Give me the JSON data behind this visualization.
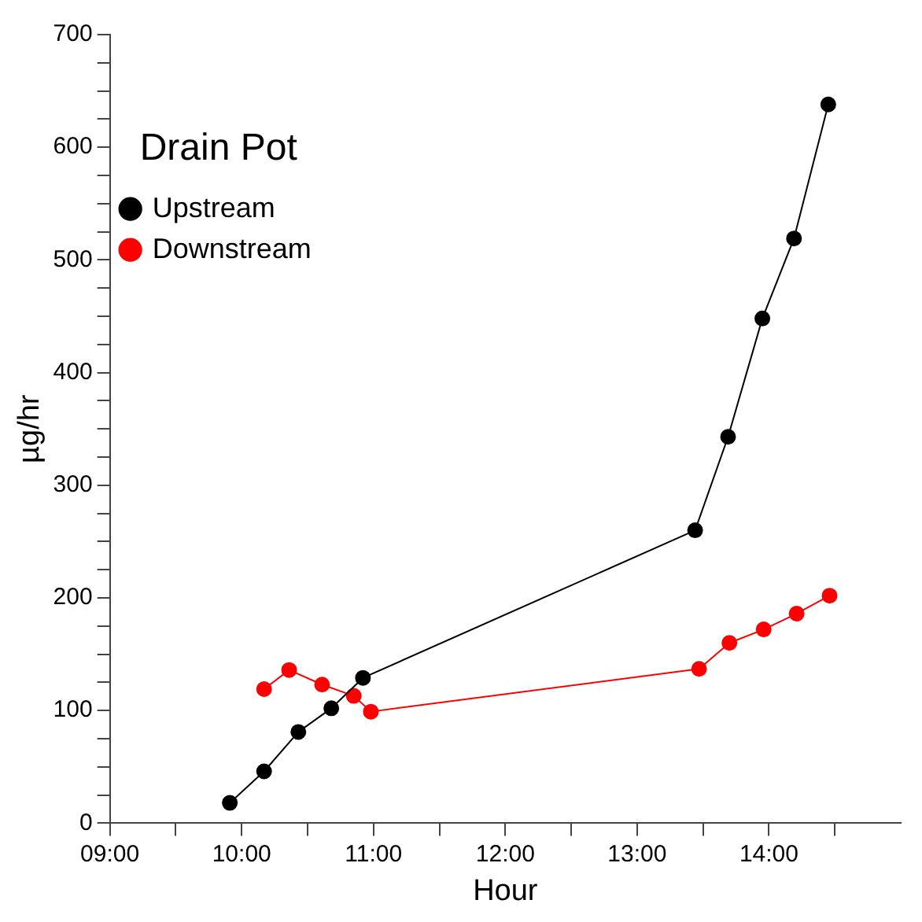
{
  "chart_data": {
    "type": "line",
    "xlabel": "Hour",
    "ylabel": "µg/hr",
    "legend_title": "Drain Pot",
    "legend": "top left",
    "marker": "circle",
    "grid": false,
    "xlim": [
      9,
      15
    ],
    "xticks": [
      {
        "value": 9,
        "label": "09:00"
      },
      {
        "value": 9.5,
        "label": null
      },
      {
        "value": 10,
        "label": "10:00"
      },
      {
        "value": 10.5,
        "label": null
      },
      {
        "value": 11,
        "label": "11:00"
      },
      {
        "value": 11.5,
        "label": null
      },
      {
        "value": 12,
        "label": "12:00"
      },
      {
        "value": 12.5,
        "label": null
      },
      {
        "value": 13,
        "label": "13:00"
      },
      {
        "value": 13.5,
        "label": null
      },
      {
        "value": 14,
        "label": "14:00"
      },
      {
        "value": 14.5,
        "label": null
      }
    ],
    "ylim": [
      0,
      700
    ],
    "yticks": [
      0,
      {
        "value": 25,
        "label": null
      },
      {
        "value": 50,
        "label": null
      },
      {
        "value": 75,
        "label": null
      },
      100,
      {
        "value": 125,
        "label": null
      },
      {
        "value": 150,
        "label": null
      },
      {
        "value": 175,
        "label": null
      },
      200,
      {
        "value": 225,
        "label": null
      },
      {
        "value": 250,
        "label": null
      },
      {
        "value": 275,
        "label": null
      },
      300,
      {
        "value": 325,
        "label": null
      },
      {
        "value": 350,
        "label": null
      },
      {
        "value": 375,
        "label": null
      },
      400,
      {
        "value": 425,
        "label": null
      },
      {
        "value": 450,
        "label": null
      },
      {
        "value": 475,
        "label": null
      },
      500,
      {
        "value": 525,
        "label": null
      },
      {
        "value": 550,
        "label": null
      },
      {
        "value": 575,
        "label": null
      },
      600,
      {
        "value": 625,
        "label": null
      },
      {
        "value": 650,
        "label": null
      },
      {
        "value": 675,
        "label": null
      },
      700
    ],
    "series": [
      {
        "name": "Upstream",
        "color": "#000000",
        "x": [
          9.91,
          10.17,
          10.43,
          10.68,
          10.92,
          13.44,
          13.69,
          13.95,
          14.19,
          14.45
        ],
        "values": [
          18,
          46,
          81,
          102,
          129,
          260,
          343,
          448,
          519,
          638
        ]
      },
      {
        "name": "Downstream",
        "color": "#ff0000",
        "x": [
          10.17,
          10.36,
          10.61,
          10.85,
          10.98,
          13.47,
          13.7,
          13.96,
          14.21,
          14.46
        ],
        "values": [
          119,
          136,
          123,
          113,
          99,
          137,
          160,
          172,
          186,
          202
        ]
      }
    ]
  }
}
